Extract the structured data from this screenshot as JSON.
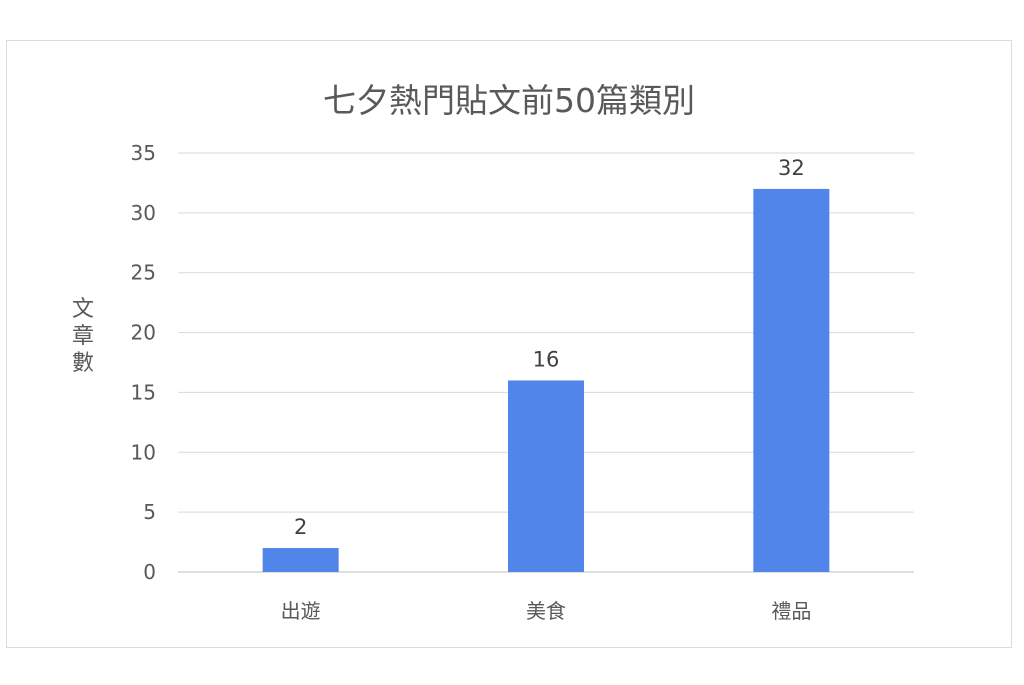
{
  "chart_data": {
    "type": "bar",
    "title": "七夕熱門貼文前50篇類別",
    "xlabel": "",
    "ylabel": "文章數",
    "categories": [
      "出遊",
      "美食",
      "禮品"
    ],
    "values": [
      2,
      16,
      32
    ],
    "data_labels": [
      "2",
      "16",
      "32"
    ],
    "yticks": [
      "0",
      "5",
      "10",
      "15",
      "20",
      "25",
      "30",
      "35"
    ],
    "ylim": [
      0,
      35
    ],
    "grid": true,
    "legend": "none",
    "bar_color": "#5185ea"
  }
}
